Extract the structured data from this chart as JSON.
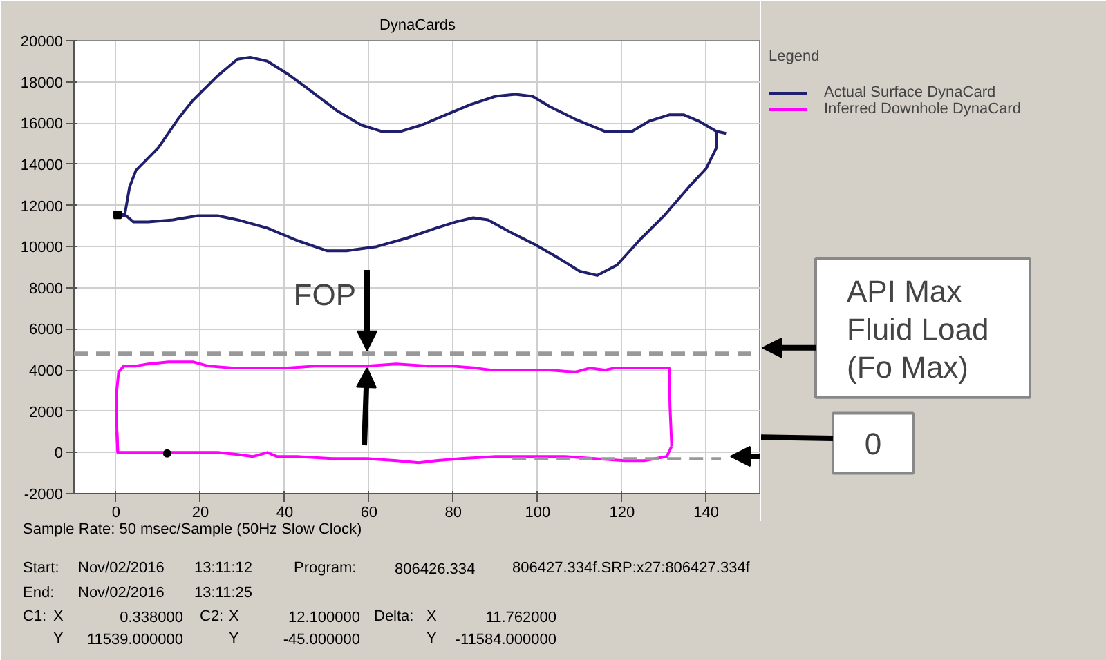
{
  "chart_data": {
    "type": "line",
    "title": "DynaCards",
    "legend_title": "Legend",
    "xlim": [
      -10,
      153
    ],
    "ylim": [
      -2000,
      20000
    ],
    "xticks": [
      0,
      20,
      40,
      60,
      80,
      100,
      120,
      140
    ],
    "yticks": [
      -2000,
      0,
      2000,
      4000,
      6000,
      8000,
      10000,
      12000,
      14000,
      16000,
      18000,
      20000
    ],
    "grid": true,
    "legend": "top right",
    "line_style": "solid",
    "marker": "none",
    "series": [
      {
        "name": "Actual Surface DynaCard",
        "color": "#1f1f6b",
        "x": [
          0.3,
          2.1,
          3.2,
          4.7,
          10,
          14.7,
          18.2,
          24.1,
          28.8,
          31.8,
          35.9,
          40.6,
          45.3,
          52.4,
          58.2,
          62.9,
          67.6,
          72.4,
          78.2,
          84.1,
          90,
          94.7,
          98.8,
          102.9,
          108.8,
          115.9,
          122.4,
          126.5,
          131.2,
          134.7,
          138.2,
          142.4,
          144.7
        ],
        "values": [
          11500,
          11600,
          12900,
          13700,
          14800,
          16200,
          17100,
          18300,
          19100,
          19200,
          19000,
          18400,
          17700,
          16600,
          15900,
          15600,
          15600,
          15900,
          16400,
          16900,
          17300,
          17400,
          17300,
          16800,
          16200,
          15600,
          15600,
          16100,
          16400,
          16400,
          16100,
          15600,
          15500
        ]
      },
      {
        "color": "#1f1f6b",
        "x": [
          0.3,
          2.4,
          4.1,
          7.6,
          13.5,
          19.4,
          24.1,
          28.8,
          35.9,
          42.9,
          50,
          54.7,
          61.8,
          68.8,
          75.9,
          80.6,
          84.7,
          88.2,
          93.5,
          99.4,
          105.3,
          110,
          114.1,
          118.8,
          124.1,
          130,
          135.9,
          140,
          142.4,
          142.4
        ],
        "values": [
          11500,
          11500,
          11200,
          11200,
          11300,
          11500,
          11500,
          11300,
          10900,
          10300,
          9800,
          9800,
          10000,
          10400,
          10900,
          11200,
          11400,
          11300,
          10700,
          10100,
          9400,
          8800,
          8600,
          9100,
          10300,
          11500,
          12900,
          13800,
          14800,
          15600
        ]
      },
      {
        "name": "Inferred Downhole DynaCard",
        "color": "#ff00ff",
        "x": [
          0.4,
          0.2,
          0,
          0.6,
          1.8,
          4.7,
          7.6,
          12.4,
          18.2,
          21.8,
          27.6,
          33.5,
          40.6,
          47.6,
          54.7,
          59.4,
          66.5,
          73.8,
          79.4,
          85.3,
          88.8,
          95.9,
          102.9,
          108.8,
          112.4,
          115.9,
          118.2,
          125.3,
          131.2,
          131.4,
          131.8
        ],
        "values": [
          0,
          1000,
          2700,
          3900,
          4200,
          4200,
          4300,
          4400,
          4400,
          4200,
          4100,
          4100,
          4100,
          4200,
          4200,
          4200,
          4300,
          4200,
          4200,
          4100,
          4000,
          4000,
          4000,
          3900,
          4100,
          4000,
          4100,
          4100,
          4100,
          2200,
          300
        ]
      },
      {
        "color": "#ff00ff",
        "x": [
          0.2,
          0.4,
          5.3,
          12.1,
          17.1,
          20,
          24.1,
          28.8,
          32.4,
          35.9,
          38.2,
          42.9,
          51.2,
          59.4,
          66.5,
          71.8,
          75.9,
          81.8,
          90,
          99.4,
          106.5,
          113.5,
          120.6,
          125.3,
          130.6,
          131.8
        ],
        "values": [
          1000,
          0,
          0,
          0,
          0,
          0,
          0,
          -100,
          -200,
          0,
          -200,
          -200,
          -300,
          -300,
          -400,
          -500,
          -400,
          -300,
          -200,
          -200,
          -200,
          -300,
          -400,
          -400,
          -200,
          300
        ]
      },
      {
        "type": "line",
        "color": "#999999",
        "line_style": "dashed",
        "x": [
          94,
          143.5
        ],
        "values": [
          -300,
          -300
        ]
      },
      {
        "type": "scatter",
        "color": "#000000",
        "marker": "square",
        "x": [
          0.338
        ],
        "values": [
          11539
        ]
      },
      {
        "type": "scatter",
        "color": "#000000",
        "marker": "circle",
        "x": [
          12.1
        ],
        "values": [
          -45
        ]
      }
    ],
    "ref_lines": [
      {
        "axis": "y",
        "value": 4800,
        "label": "API Max Fluid Load (Fo Max)",
        "color": "#999999",
        "line_style": "dashed"
      }
    ],
    "annotations": [
      "FOP",
      "0",
      "Sample Rate: 50 msec/Sample (50Hz Slow Clock)",
      "Start:",
      "Nov/02/2016",
      "13:11:12",
      "Program:",
      "806426.334",
      "806427.334f.SRP:x27:806427.334f",
      "End:",
      "Nov/02/2016",
      "13:11:25",
      "C1:",
      "X",
      "0.338000",
      "C2:",
      "X",
      "12.100000",
      "Delta:",
      "X",
      "11.762000",
      "Y",
      "11539.000000",
      "Y",
      "-45.000000",
      "Y",
      "-11584.000000"
    ]
  }
}
